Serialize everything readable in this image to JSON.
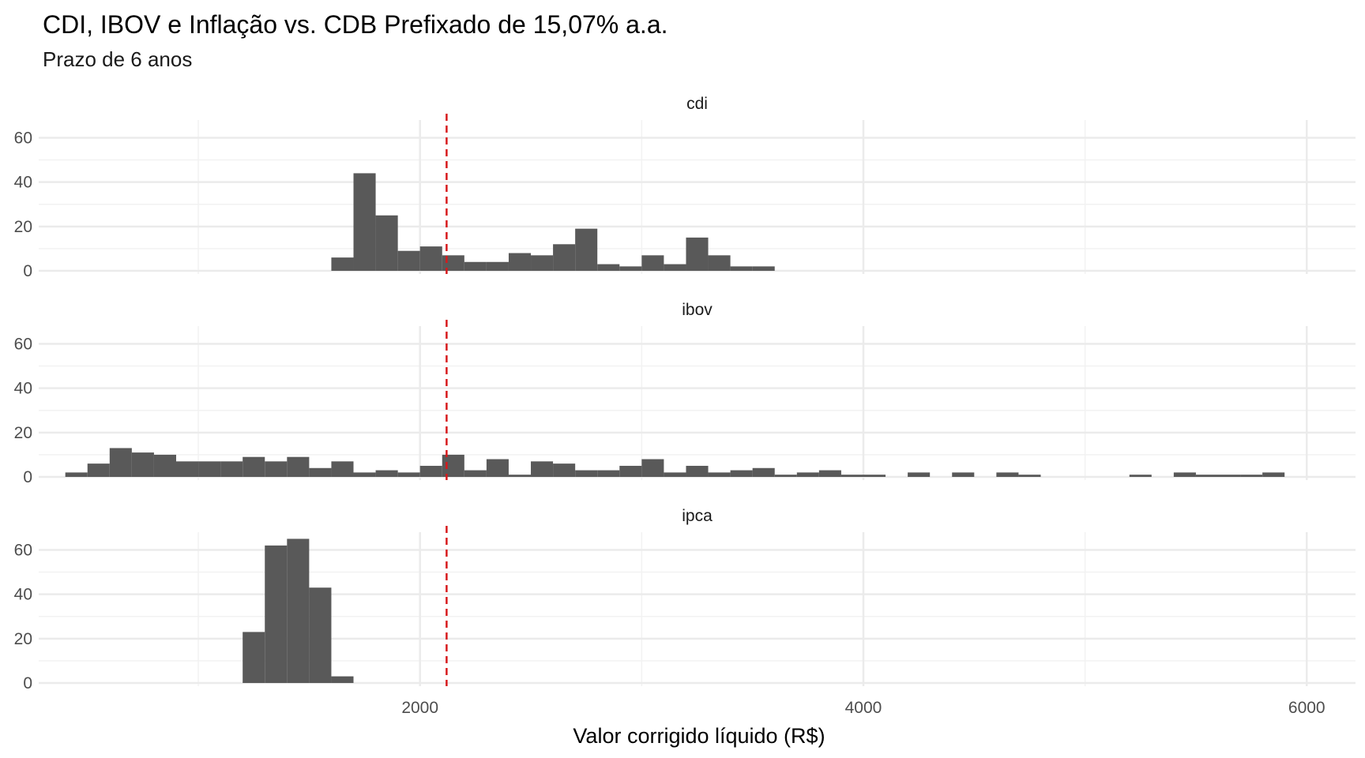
{
  "chart_data": {
    "type": "bar",
    "title": "CDI, IBOV e Inflação vs. CDB Prefixado de 15,07% a.a.",
    "subtitle": "Prazo de 6 anos",
    "xlabel": "Valor corrigido líquido (R$)",
    "ylabel": "",
    "xlim": [
      280,
      6220
    ],
    "ylim": [
      0,
      68
    ],
    "x_ticks": [
      2000,
      4000,
      6000
    ],
    "x_tick_labels": [
      "2000",
      "4000",
      "6000"
    ],
    "y_ticks": [
      0,
      20,
      40,
      60
    ],
    "y_tick_labels": [
      "0",
      "20",
      "40",
      "60"
    ],
    "bin_width": 100,
    "reference_line": {
      "x": 2120,
      "color": "#d7191c",
      "style": "dashed"
    },
    "bar_color": "#595959",
    "grid": true,
    "panels": [
      {
        "name": "cdi",
        "bins": [
          {
            "x": 1650,
            "count": 6
          },
          {
            "x": 1750,
            "count": 44
          },
          {
            "x": 1850,
            "count": 25
          },
          {
            "x": 1950,
            "count": 9
          },
          {
            "x": 2050,
            "count": 11
          },
          {
            "x": 2150,
            "count": 7
          },
          {
            "x": 2250,
            "count": 4
          },
          {
            "x": 2350,
            "count": 4
          },
          {
            "x": 2450,
            "count": 8
          },
          {
            "x": 2550,
            "count": 7
          },
          {
            "x": 2650,
            "count": 12
          },
          {
            "x": 2750,
            "count": 19
          },
          {
            "x": 2850,
            "count": 3
          },
          {
            "x": 2950,
            "count": 2
          },
          {
            "x": 3050,
            "count": 7
          },
          {
            "x": 3150,
            "count": 3
          },
          {
            "x": 3250,
            "count": 15
          },
          {
            "x": 3350,
            "count": 7
          },
          {
            "x": 3450,
            "count": 2
          },
          {
            "x": 3550,
            "count": 2
          }
        ]
      },
      {
        "name": "ibov",
        "bins": [
          {
            "x": 450,
            "count": 2
          },
          {
            "x": 550,
            "count": 6
          },
          {
            "x": 650,
            "count": 13
          },
          {
            "x": 750,
            "count": 11
          },
          {
            "x": 850,
            "count": 10
          },
          {
            "x": 950,
            "count": 7
          },
          {
            "x": 1050,
            "count": 7
          },
          {
            "x": 1150,
            "count": 7
          },
          {
            "x": 1250,
            "count": 9
          },
          {
            "x": 1350,
            "count": 7
          },
          {
            "x": 1450,
            "count": 9
          },
          {
            "x": 1550,
            "count": 4
          },
          {
            "x": 1650,
            "count": 7
          },
          {
            "x": 1750,
            "count": 2
          },
          {
            "x": 1850,
            "count": 3
          },
          {
            "x": 1950,
            "count": 2
          },
          {
            "x": 2050,
            "count": 5
          },
          {
            "x": 2150,
            "count": 10
          },
          {
            "x": 2250,
            "count": 3
          },
          {
            "x": 2350,
            "count": 8
          },
          {
            "x": 2450,
            "count": 1
          },
          {
            "x": 2550,
            "count": 7
          },
          {
            "x": 2650,
            "count": 6
          },
          {
            "x": 2750,
            "count": 3
          },
          {
            "x": 2850,
            "count": 3
          },
          {
            "x": 2950,
            "count": 5
          },
          {
            "x": 3050,
            "count": 8
          },
          {
            "x": 3150,
            "count": 2
          },
          {
            "x": 3250,
            "count": 5
          },
          {
            "x": 3350,
            "count": 2
          },
          {
            "x": 3450,
            "count": 3
          },
          {
            "x": 3550,
            "count": 4
          },
          {
            "x": 3650,
            "count": 1
          },
          {
            "x": 3750,
            "count": 2
          },
          {
            "x": 3850,
            "count": 3
          },
          {
            "x": 3950,
            "count": 1
          },
          {
            "x": 4050,
            "count": 1
          },
          {
            "x": 4250,
            "count": 2
          },
          {
            "x": 4450,
            "count": 2
          },
          {
            "x": 4650,
            "count": 2
          },
          {
            "x": 4750,
            "count": 1
          },
          {
            "x": 5250,
            "count": 1
          },
          {
            "x": 5450,
            "count": 2
          },
          {
            "x": 5550,
            "count": 1
          },
          {
            "x": 5650,
            "count": 1
          },
          {
            "x": 5750,
            "count": 1
          },
          {
            "x": 5850,
            "count": 2
          }
        ]
      },
      {
        "name": "ipca",
        "bins": [
          {
            "x": 1250,
            "count": 23
          },
          {
            "x": 1350,
            "count": 62
          },
          {
            "x": 1450,
            "count": 65
          },
          {
            "x": 1550,
            "count": 43
          },
          {
            "x": 1650,
            "count": 3
          }
        ]
      }
    ]
  }
}
